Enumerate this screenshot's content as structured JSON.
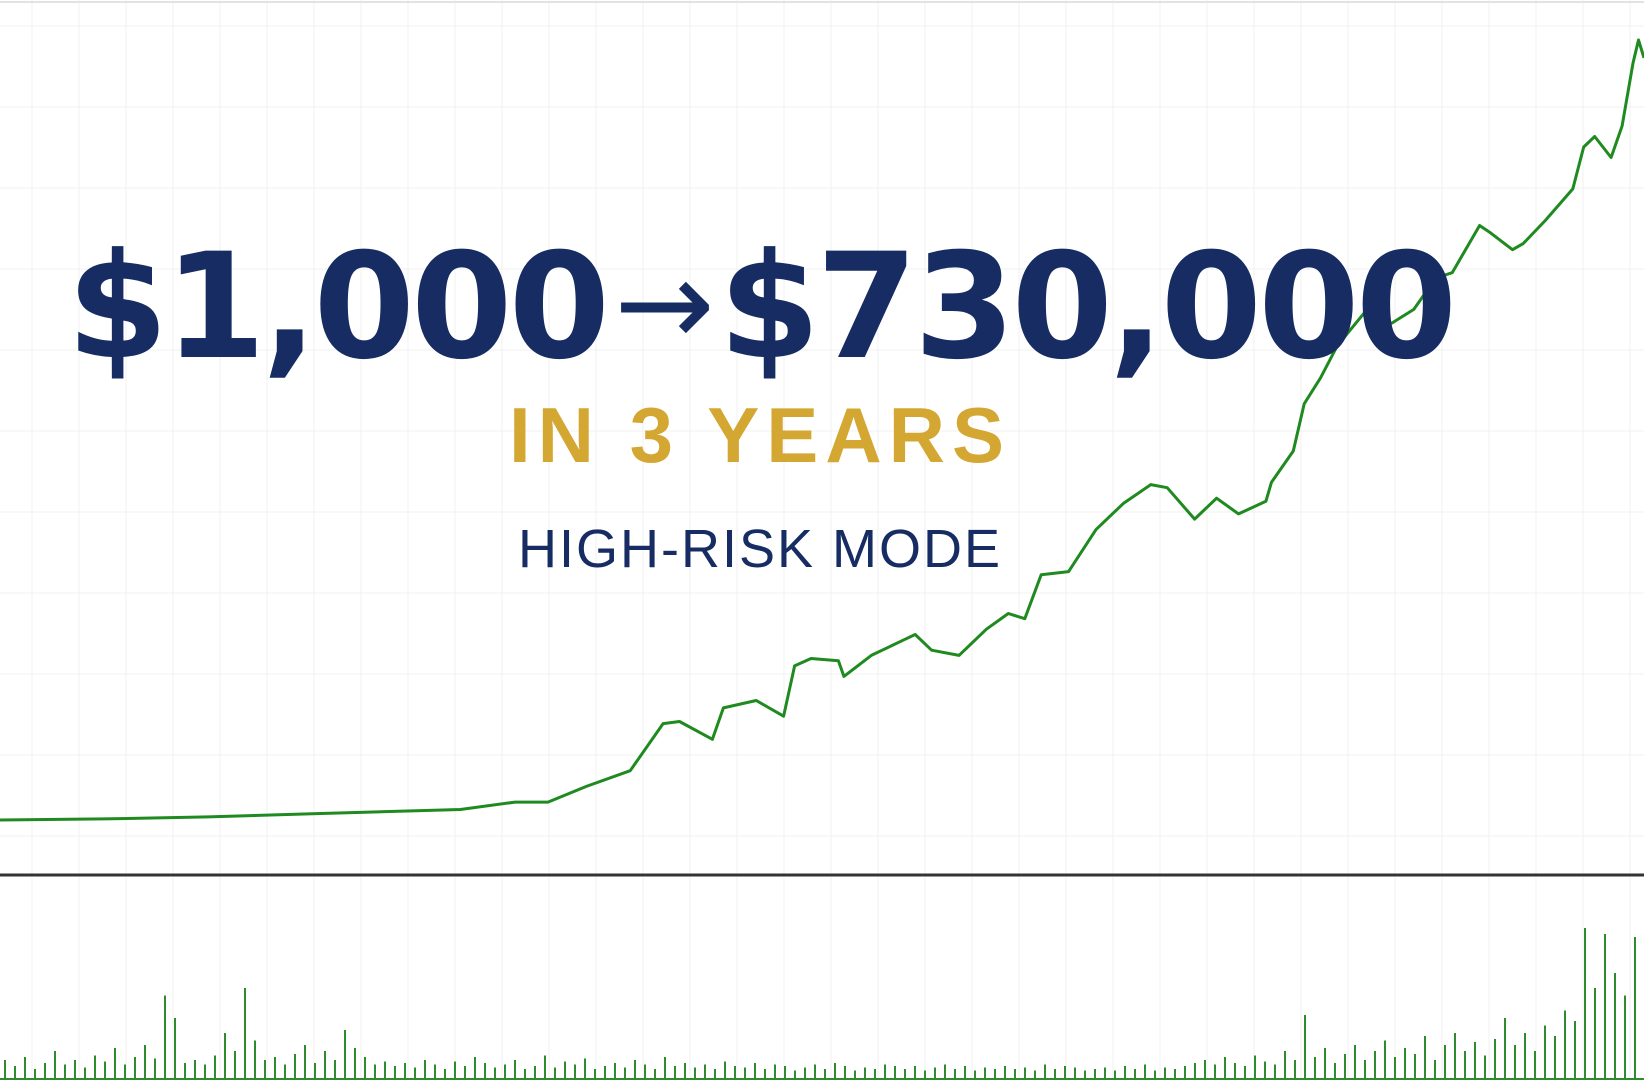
{
  "headline": {
    "from_amount": "$1,000",
    "arrow": "→",
    "to_amount": "$730,000",
    "period": "IN 3 YEARS",
    "mode": "HIGH-RISK MODE"
  },
  "colors": {
    "navy": "#162c62",
    "gold": "#d4a733",
    "line": "#1f8a1f",
    "volume": "#2e8b2e",
    "axis": "#333333",
    "grid": "#f1f1f1"
  },
  "chart_data": [
    {
      "type": "line",
      "title": "",
      "xlabel": "",
      "ylabel": "",
      "xlim": [
        0,
        3
      ],
      "ylim": [
        1000,
        730000
      ],
      "grid": true,
      "x": [
        0,
        0.19,
        0.38,
        0.57,
        0.84,
        0.94,
        1.0,
        1.07,
        1.15,
        1.21,
        1.24,
        1.3,
        1.32,
        1.38,
        1.43,
        1.45,
        1.48,
        1.53,
        1.54,
        1.59,
        1.65,
        1.67,
        1.7,
        1.75,
        1.8,
        1.84,
        1.87,
        1.9,
        1.95,
        2.0,
        2.05,
        2.1,
        2.13,
        2.18,
        2.22,
        2.26,
        2.31,
        2.32,
        2.36,
        2.38,
        2.41,
        2.44,
        2.49,
        2.51,
        2.54,
        2.58,
        2.62,
        2.65,
        2.7,
        2.72,
        2.76,
        2.78,
        2.82,
        2.87,
        2.89,
        2.91,
        2.94,
        2.96,
        2.98,
        2.99,
        3.0
      ],
      "y": [
        1000,
        2000,
        3900,
        6900,
        10800,
        17700,
        17700,
        32400,
        47100,
        91100,
        93100,
        76400,
        105800,
        112700,
        98000,
        145000,
        151900,
        149900,
        135200,
        154800,
        169500,
        174400,
        159700,
        154800,
        179300,
        194000,
        189100,
        230300,
        233200,
        272400,
        296900,
        314500,
        311600,
        282200,
        301800,
        287100,
        298900,
        316500,
        345900,
        390000,
        414500,
        443900,
        475200,
        468400,
        465400,
        478200,
        507600,
        512500,
        556600,
        549700,
        534000,
        539900,
        561400,
        590800,
        630000,
        639800,
        620200,
        649600,
        708400,
        730000,
        713300
      ]
    },
    {
      "type": "bar",
      "title": "",
      "ylim": [
        0,
        100
      ],
      "values": [
        12,
        8,
        14,
        6,
        10,
        18,
        9,
        12,
        7,
        15,
        11,
        20,
        9,
        14,
        22,
        13,
        55,
        40,
        10,
        12,
        9,
        15,
        30,
        18,
        60,
        25,
        12,
        14,
        9,
        16,
        22,
        10,
        18,
        12,
        32,
        20,
        14,
        9,
        11,
        8,
        10,
        7,
        12,
        9,
        6,
        11,
        8,
        14,
        10,
        7,
        9,
        12,
        6,
        8,
        15,
        7,
        11,
        9,
        13,
        6,
        8,
        10,
        7,
        12,
        9,
        6,
        14,
        8,
        10,
        7,
        9,
        6,
        11,
        8,
        7,
        10,
        6,
        9,
        8,
        5,
        7,
        9,
        6,
        10,
        8,
        5,
        7,
        6,
        9,
        8,
        6,
        8,
        5,
        7,
        9,
        6,
        8,
        5,
        7,
        6,
        8,
        6,
        7,
        5,
        9,
        6,
        8,
        7,
        5,
        6,
        7,
        5,
        8,
        6,
        9,
        5,
        7,
        6,
        8,
        10,
        12,
        9,
        14,
        10,
        8,
        15,
        11,
        9,
        18,
        12,
        42,
        14,
        20,
        10,
        16,
        22,
        12,
        18,
        25,
        14,
        20,
        16,
        28,
        12,
        22,
        30,
        18,
        24,
        15,
        26,
        40,
        22,
        30,
        18,
        35,
        28,
        45,
        38,
        100,
        60,
        96,
        70,
        55,
        94,
        80
      ]
    }
  ]
}
